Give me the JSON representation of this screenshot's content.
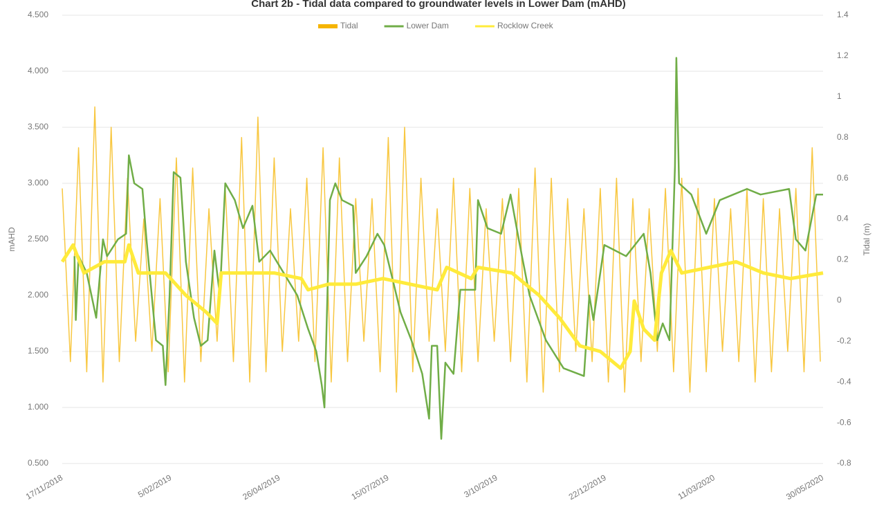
{
  "chart_data": {
    "type": "line",
    "title": "Chart 2b - Tidal data compared to groundwater levels in Lower Dam (mAHD)",
    "y_label": "mAHD",
    "y2_label": "Tidal (m)",
    "xlim": [
      "17/11/2018",
      "30/05/2020"
    ],
    "xticks": [
      "17/11/2018",
      "5/02/2019",
      "26/04/2019",
      "15/07/2019",
      "3/10/2019",
      "22/12/2019",
      "11/03/2020",
      "30/05/2020"
    ],
    "ylim": [
      0.5,
      4.5
    ],
    "yticks": [
      {
        "value": 0.5,
        "label": "0.500"
      },
      {
        "value": 1,
        "label": "1.000"
      },
      {
        "value": 1.5,
        "label": "1.500"
      },
      {
        "value": 2,
        "label": "2.000"
      },
      {
        "value": 2.5,
        "label": "2.500"
      },
      {
        "value": 3,
        "label": "3.000"
      },
      {
        "value": 3.5,
        "label": "3.500"
      },
      {
        "value": 4,
        "label": "4.000"
      },
      {
        "value": 4.5,
        "label": "4.500"
      }
    ],
    "y2lim": [
      -0.8,
      1.4
    ],
    "y2ticks": [
      -0.8,
      -0.6,
      -0.4,
      -0.2,
      0,
      0.2,
      0.4,
      0.6,
      0.8,
      1,
      1.2,
      1.4
    ],
    "grid": true,
    "series": [
      {
        "name": "Tidal",
        "color": "#f5b400",
        "axis": "y2",
        "x": [
          "17/11/2018",
          "23/11/2018",
          "29/11/2018",
          "5/12/2018",
          "11/12/2018",
          "17/12/2018",
          "23/12/2018",
          "29/12/2018",
          "4/01/2019",
          "10/01/2019",
          "16/01/2019",
          "22/01/2019",
          "28/01/2019",
          "3/02/2019",
          "9/02/2019",
          "15/02/2019",
          "21/02/2019",
          "27/02/2019",
          "5/03/2019",
          "11/03/2019",
          "17/03/2019",
          "23/03/2019",
          "29/03/2019",
          "4/04/2019",
          "10/04/2019",
          "16/04/2019",
          "22/04/2019",
          "28/04/2019",
          "4/05/2019",
          "10/05/2019",
          "16/05/2019",
          "22/05/2019",
          "28/05/2019",
          "3/06/2019",
          "9/06/2019",
          "15/06/2019",
          "21/06/2019",
          "27/06/2019",
          "3/07/2019",
          "9/07/2019",
          "15/07/2019",
          "21/07/2019",
          "27/07/2019",
          "2/08/2019",
          "8/08/2019",
          "14/08/2019",
          "20/08/2019",
          "26/08/2019",
          "1/09/2019",
          "7/09/2019",
          "13/09/2019",
          "19/09/2019",
          "25/09/2019",
          "1/10/2019",
          "7/10/2019",
          "13/10/2019",
          "19/10/2019",
          "25/10/2019",
          "31/10/2019",
          "6/11/2019",
          "12/11/2019",
          "18/11/2019",
          "24/11/2019",
          "30/11/2019",
          "6/12/2019",
          "12/12/2019",
          "18/12/2019",
          "24/12/2019",
          "30/12/2019",
          "5/01/2020",
          "11/01/2020",
          "17/01/2020",
          "23/01/2020",
          "29/01/2020",
          "4/02/2020",
          "10/02/2020",
          "16/02/2020",
          "22/02/2020",
          "28/02/2020",
          "5/03/2020",
          "11/03/2020",
          "17/03/2020",
          "23/03/2020",
          "29/03/2020",
          "4/04/2020",
          "10/04/2020",
          "16/04/2020",
          "22/04/2020",
          "28/04/2020",
          "4/05/2020",
          "10/05/2020",
          "16/05/2020",
          "22/05/2020",
          "28/05/2020"
        ],
        "values": [
          0.55,
          -0.3,
          0.75,
          -0.35,
          0.95,
          -0.4,
          0.85,
          -0.3,
          0.6,
          -0.2,
          0.4,
          -0.25,
          0.5,
          -0.35,
          0.7,
          -0.4,
          0.65,
          -0.3,
          0.45,
          -0.2,
          0.55,
          -0.3,
          0.8,
          -0.4,
          0.9,
          -0.35,
          0.7,
          -0.25,
          0.45,
          -0.2,
          0.6,
          -0.3,
          0.75,
          -0.4,
          0.7,
          -0.3,
          0.5,
          -0.2,
          0.5,
          -0.35,
          0.8,
          -0.45,
          0.85,
          -0.35,
          0.6,
          -0.2,
          0.45,
          -0.25,
          0.6,
          -0.35,
          0.55,
          -0.3,
          0.45,
          -0.2,
          0.5,
          -0.3,
          0.55,
          -0.4,
          0.65,
          -0.45,
          0.6,
          -0.35,
          0.5,
          -0.25,
          0.45,
          -0.3,
          0.55,
          -0.4,
          0.6,
          -0.45,
          0.5,
          -0.3,
          0.45,
          -0.25,
          0.55,
          -0.35,
          0.6,
          -0.45,
          0.55,
          -0.35,
          0.5,
          -0.25,
          0.45,
          -0.3,
          0.55,
          -0.4,
          0.5,
          -0.35,
          0.45,
          -0.25,
          0.55,
          -0.35,
          0.75,
          -0.3
        ]
      },
      {
        "name": "Lower Dam",
        "color": "#70ad47",
        "x": [
          "26/11/2018",
          "27/11/2018",
          "29/11/2018",
          "5/12/2018",
          "12/12/2018",
          "17/12/2018",
          "20/12/2018",
          "28/12/2018",
          "3/01/2019",
          "5/01/2019",
          "9/01/2019",
          "15/01/2019",
          "18/01/2019",
          "25/01/2019",
          "30/01/2019",
          "1/02/2019",
          "4/02/2019",
          "7/02/2019",
          "12/02/2019",
          "16/02/2019",
          "22/02/2019",
          "27/02/2019",
          "4/03/2019",
          "9/03/2019",
          "13/03/2019",
          "17/03/2019",
          "24/03/2019",
          "30/03/2019",
          "6/04/2019",
          "11/04/2019",
          "19/04/2019",
          "29/04/2019",
          "9/05/2019",
          "17/05/2019",
          "23/05/2019",
          "27/05/2019",
          "29/05/2019",
          "2/06/2019",
          "6/06/2019",
          "11/06/2019",
          "19/06/2019",
          "21/06/2019",
          "29/06/2019",
          "7/07/2019",
          "12/07/2019",
          "17/07/2019",
          "24/07/2019",
          "1/08/2019",
          "9/08/2019",
          "14/08/2019",
          "16/08/2019",
          "20/08/2019",
          "23/08/2019",
          "26/08/2019",
          "1/09/2019",
          "6/09/2019",
          "17/09/2019",
          "19/09/2019",
          "26/09/2019",
          "6/10/2019",
          "13/10/2019",
          "19/10/2019",
          "27/10/2019",
          "8/11/2019",
          "21/11/2019",
          "6/12/2019",
          "10/12/2019",
          "13/12/2019",
          "21/12/2019",
          "6/01/2020",
          "19/01/2020",
          "24/01/2020",
          "29/01/2020",
          "2/02/2020",
          "7/02/2020",
          "11/02/2020",
          "12/02/2020",
          "14/02/2020",
          "23/02/2020",
          "5/03/2020",
          "15/03/2020",
          "25/03/2020",
          "4/04/2020",
          "14/04/2020",
          "5/05/2020",
          "10/05/2020",
          "17/05/2020",
          "25/05/2020",
          "30/05/2020"
        ],
        "values": [
          2.35,
          1.78,
          2.35,
          2.2,
          1.8,
          2.5,
          2.35,
          2.5,
          2.55,
          3.25,
          3.0,
          2.95,
          2.5,
          1.6,
          1.55,
          1.2,
          2.0,
          3.1,
          3.05,
          2.3,
          1.8,
          1.55,
          1.6,
          2.4,
          2.0,
          3.0,
          2.85,
          2.6,
          2.8,
          2.3,
          2.4,
          2.2,
          2.0,
          1.7,
          1.5,
          1.2,
          1.0,
          2.85,
          3.0,
          2.85,
          2.8,
          2.2,
          2.35,
          2.55,
          2.45,
          2.2,
          1.85,
          1.6,
          1.3,
          0.9,
          1.55,
          1.55,
          0.72,
          1.4,
          1.3,
          2.05,
          2.05,
          2.85,
          2.6,
          2.55,
          2.9,
          2.5,
          2.0,
          1.6,
          1.35,
          1.28,
          2.0,
          1.78,
          2.45,
          2.35,
          2.55,
          2.2,
          1.6,
          1.75,
          1.6,
          3.15,
          4.12,
          3.0,
          2.9,
          2.55,
          2.85,
          2.9,
          2.95,
          2.9,
          2.95,
          2.5,
          2.4,
          2.9,
          2.9
        ]
      },
      {
        "name": "Rocklow Creek",
        "color": "#ffeb3b",
        "x": [
          "17/11/2018",
          "25/11/2018",
          "3/12/2018",
          "18/12/2018",
          "2/01/2019",
          "5/01/2019",
          "12/01/2019",
          "1/02/2019",
          "16/02/2019",
          "3/03/2019",
          "11/03/2019",
          "14/03/2019",
          "28/03/2019",
          "22/04/2019",
          "12/05/2019",
          "17/05/2019",
          "1/06/2019",
          "21/06/2019",
          "11/07/2019",
          "31/07/2019",
          "20/08/2019",
          "27/08/2019",
          "14/09/2019",
          "19/09/2019",
          "14/10/2019",
          "3/11/2019",
          "18/11/2019",
          "3/12/2019",
          "18/12/2019",
          "2/01/2020",
          "9/01/2020",
          "12/01/2020",
          "19/01/2020",
          "27/01/2020",
          "1/02/2020",
          "8/02/2020",
          "16/02/2020",
          "7/03/2020",
          "27/03/2020",
          "16/04/2020",
          "6/05/2020",
          "30/05/2020"
        ],
        "values": [
          2.3,
          2.45,
          2.2,
          2.3,
          2.3,
          2.45,
          2.2,
          2.2,
          2.0,
          1.85,
          1.75,
          2.2,
          2.2,
          2.2,
          2.15,
          2.05,
          2.1,
          2.1,
          2.15,
          2.1,
          2.05,
          2.25,
          2.15,
          2.25,
          2.2,
          2.0,
          1.8,
          1.55,
          1.5,
          1.35,
          1.5,
          1.95,
          1.7,
          1.6,
          2.2,
          2.4,
          2.2,
          2.25,
          2.3,
          2.2,
          2.15,
          2.2
        ]
      }
    ]
  }
}
